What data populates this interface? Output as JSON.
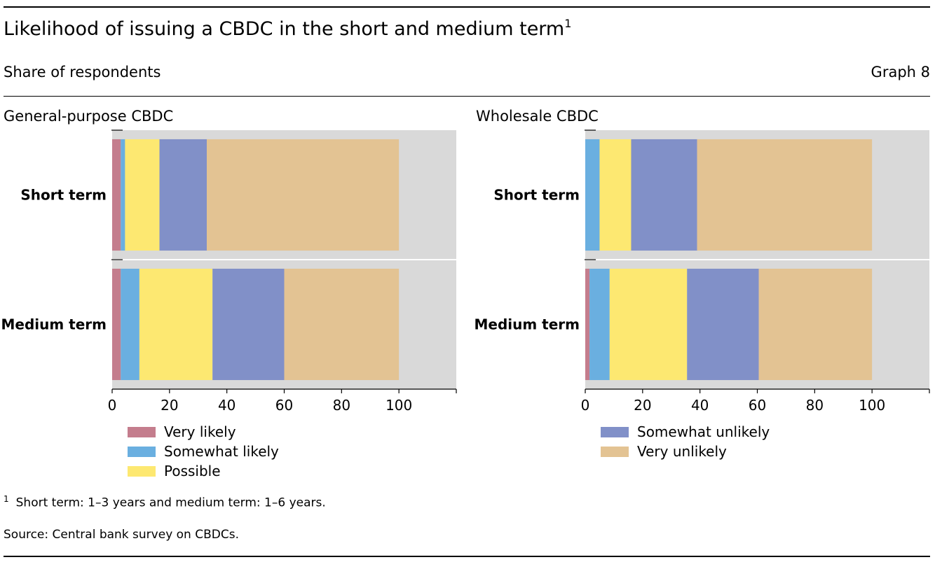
{
  "header": {
    "title": "Likelihood of issuing a CBDC in the short and medium term",
    "title_footnote_marker": "1",
    "subtitle": "Share of respondents",
    "graph_number": "Graph 8"
  },
  "colors": {
    "very_likely": "#c47d8d",
    "somewhat_likely": "#6aafe0",
    "possible": "#fde871",
    "somewhat_unlikely": "#8190c8",
    "very_unlikely": "#e3c393",
    "plot_background": "#d9d9d9"
  },
  "chart_data": [
    {
      "type": "bar",
      "orientation": "horizontal",
      "stacked": true,
      "title": "General-purpose CBDC",
      "categories": [
        "Short term",
        "Medium term"
      ],
      "xlim": [
        0,
        120
      ],
      "xticks": [
        0,
        20,
        40,
        60,
        80,
        100
      ],
      "series": [
        {
          "name": "Very likely",
          "color_key": "very_likely",
          "values": [
            3,
            3
          ]
        },
        {
          "name": "Somewhat likely",
          "color_key": "somewhat_likely",
          "values": [
            1.5,
            6.5
          ]
        },
        {
          "name": "Possible",
          "color_key": "possible",
          "values": [
            12,
            25.5
          ]
        },
        {
          "name": "Somewhat unlikely",
          "color_key": "somewhat_unlikely",
          "values": [
            16.5,
            25
          ]
        },
        {
          "name": "Very unlikely",
          "color_key": "very_unlikely",
          "values": [
            67,
            40
          ]
        }
      ]
    },
    {
      "type": "bar",
      "orientation": "horizontal",
      "stacked": true,
      "title": "Wholesale CBDC",
      "categories": [
        "Short term",
        "Medium term"
      ],
      "xlim": [
        0,
        120
      ],
      "xticks": [
        0,
        20,
        40,
        60,
        80,
        100
      ],
      "series": [
        {
          "name": "Very likely",
          "color_key": "very_likely",
          "values": [
            0,
            1.5
          ]
        },
        {
          "name": "Somewhat likely",
          "color_key": "somewhat_likely",
          "values": [
            5,
            7
          ]
        },
        {
          "name": "Possible",
          "color_key": "possible",
          "values": [
            11,
            27
          ]
        },
        {
          "name": "Somewhat unlikely",
          "color_key": "somewhat_unlikely",
          "values": [
            23,
            25
          ]
        },
        {
          "name": "Very unlikely",
          "color_key": "very_unlikely",
          "values": [
            61,
            39.5
          ]
        }
      ]
    }
  ],
  "legend": {
    "left": [
      "Very likely",
      "Somewhat likely",
      "Possible"
    ],
    "right": [
      "Somewhat unlikely",
      "Very unlikely"
    ]
  },
  "footer": {
    "footnote_marker": "1",
    "footnote": "Short term: 1–3 years and medium term: 1–6 years.",
    "source": "Source: Central bank survey on CBDCs."
  }
}
